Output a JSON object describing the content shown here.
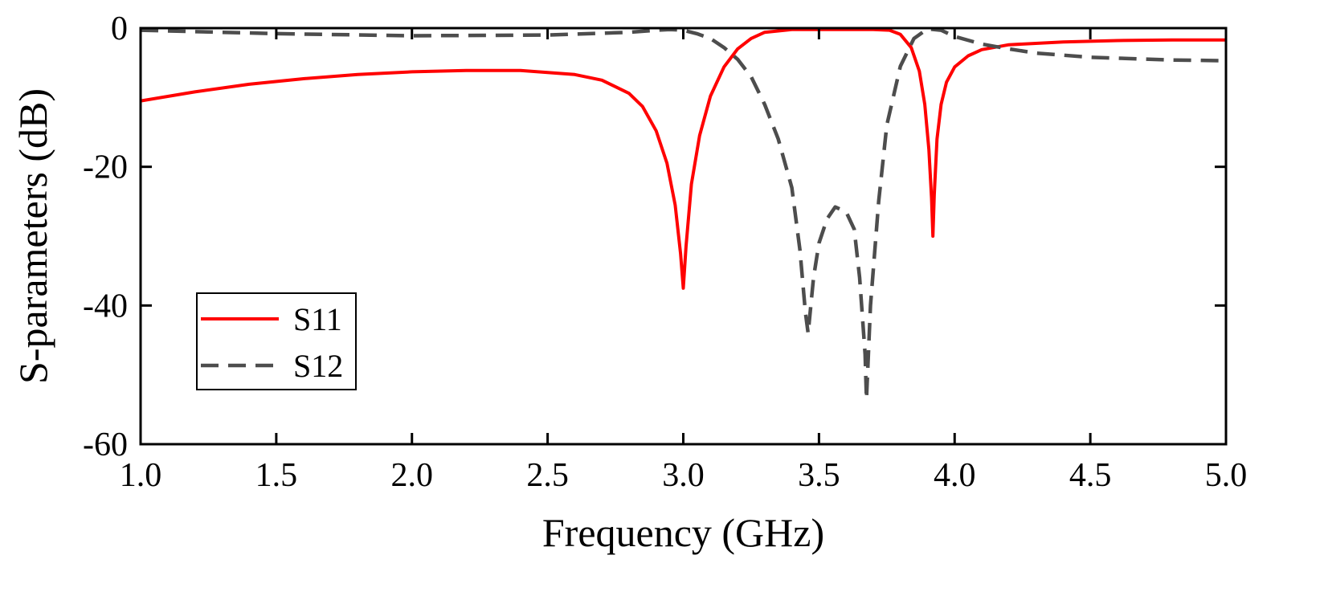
{
  "chart_data": {
    "type": "line",
    "title": "",
    "xlabel": "Frequency (GHz)",
    "ylabel": "S-parameters (dB)",
    "xlim": [
      1.0,
      5.0
    ],
    "ylim": [
      -60,
      0
    ],
    "xticks": [
      "1.0",
      "1.5",
      "2.0",
      "2.5",
      "3.0",
      "3.5",
      "4.0",
      "4.5",
      "5.0"
    ],
    "yticks": [
      "0",
      "-20",
      "-40",
      "-60"
    ],
    "grid": false,
    "legend_position": "bottom-left",
    "series": [
      {
        "name": "S11",
        "color": "#ff0000",
        "style": "solid",
        "x": [
          1.0,
          1.2,
          1.4,
          1.6,
          1.8,
          2.0,
          2.2,
          2.4,
          2.6,
          2.7,
          2.8,
          2.85,
          2.9,
          2.94,
          2.97,
          2.99,
          3.0,
          3.01,
          3.03,
          3.06,
          3.1,
          3.15,
          3.2,
          3.25,
          3.3,
          3.4,
          3.5,
          3.6,
          3.7,
          3.76,
          3.8,
          3.84,
          3.87,
          3.89,
          3.905,
          3.915,
          3.92,
          3.925,
          3.935,
          3.95,
          3.97,
          4.0,
          4.05,
          4.1,
          4.2,
          4.4,
          4.6,
          4.8,
          5.0
        ],
        "y": [
          -10.5,
          -9.2,
          -8.1,
          -7.3,
          -6.7,
          -6.3,
          -6.1,
          -6.1,
          -6.7,
          -7.5,
          -9.4,
          -11.3,
          -14.8,
          -19.5,
          -25.5,
          -32.5,
          -37.5,
          -31.5,
          -22.5,
          -15.5,
          -9.8,
          -5.6,
          -3.0,
          -1.5,
          -0.6,
          -0.2,
          -0.2,
          -0.2,
          -0.2,
          -0.3,
          -0.9,
          -2.8,
          -6.2,
          -11.0,
          -17.5,
          -24.5,
          -30.0,
          -24.0,
          -16.0,
          -11.0,
          -7.8,
          -5.6,
          -4.0,
          -3.1,
          -2.4,
          -2.0,
          -1.8,
          -1.7,
          -1.7
        ]
      },
      {
        "name": "S12",
        "color": "#4d4d4d",
        "style": "dashed",
        "x": [
          1.0,
          1.5,
          2.0,
          2.5,
          2.8,
          2.9,
          2.95,
          3.0,
          3.05,
          3.1,
          3.15,
          3.2,
          3.25,
          3.3,
          3.35,
          3.4,
          3.43,
          3.45,
          3.46,
          3.48,
          3.5,
          3.53,
          3.56,
          3.6,
          3.63,
          3.65,
          3.67,
          3.675,
          3.69,
          3.72,
          3.75,
          3.8,
          3.85,
          3.9,
          3.95,
          4.0,
          4.1,
          4.2,
          4.3,
          4.5,
          4.8,
          5.0
        ],
        "y": [
          -0.3,
          -0.8,
          -1.1,
          -1.0,
          -0.6,
          -0.3,
          -0.2,
          -0.3,
          -0.8,
          -1.5,
          -2.8,
          -4.5,
          -7.0,
          -11.0,
          -16.0,
          -23.0,
          -32.0,
          -41.0,
          -44.0,
          -36.0,
          -31.0,
          -27.5,
          -25.8,
          -26.5,
          -29.0,
          -36.0,
          -47.0,
          -53.5,
          -40.0,
          -25.0,
          -14.0,
          -5.5,
          -1.5,
          -0.1,
          -0.3,
          -1.2,
          -2.3,
          -3.0,
          -3.6,
          -4.2,
          -4.6,
          -4.7
        ]
      }
    ]
  }
}
